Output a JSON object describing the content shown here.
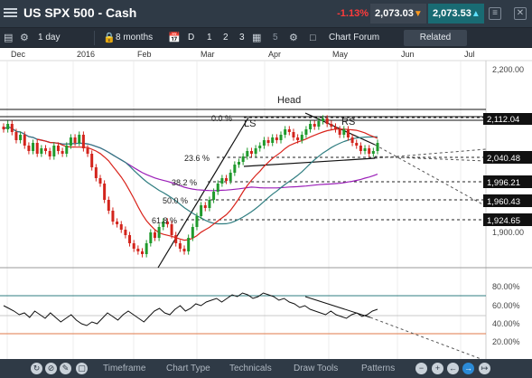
{
  "window": {
    "title": "US SPX 500 - Cash",
    "change": "-1.13%",
    "bid": "2,073.03",
    "ask": "2,073.53",
    "controls": [
      "≡",
      "−",
      "✕"
    ]
  },
  "toolbar": {
    "interval": "1 day",
    "range": "8 months",
    "views": [
      "D",
      "1",
      "2",
      "3"
    ],
    "layout_value": "5",
    "forum": "Chart Forum",
    "related": "Related"
  },
  "bottom": {
    "timeframe": "Timeframe",
    "chart_type": "Chart Type",
    "technicals": "Technicals",
    "draw_tools": "Draw Tools",
    "patterns": "Patterns"
  },
  "chart_data": {
    "type": "line",
    "instrument": "US SPX 500 - Cash",
    "x_labels": [
      "Dec",
      "2016",
      "Feb",
      "Mar",
      "Apr",
      "May",
      "Jun",
      "Jul"
    ],
    "y_ticks": [
      "2,200.00",
      "1,900.00"
    ],
    "price_labels": [
      "2,112.04",
      "2,040.48",
      "1,996.21",
      "1,960.43",
      "1,924.65"
    ],
    "fib_levels": [
      {
        "label": "0.0 %",
        "price": 2112
      },
      {
        "label": "23.6 %",
        "price": 2040
      },
      {
        "label": "38.2 %",
        "price": 1996
      },
      {
        "label": "50.0 %",
        "price": 1960
      },
      {
        "label": "61.8 %",
        "price": 1925
      }
    ],
    "annotations": [
      "Head",
      "LS",
      "RS"
    ],
    "price_series": [
      2090,
      2100,
      2085,
      2070,
      2080,
      2060,
      2050,
      2065,
      2045,
      2055,
      2050,
      2040,
      2060,
      2050,
      2045,
      2060,
      2075,
      2065,
      2080,
      2055,
      2045,
      2020,
      2000,
      1990,
      1960,
      1940,
      1920,
      1915,
      1905,
      1895,
      1880,
      1870,
      1865,
      1860,
      1880,
      1900,
      1890,
      1910,
      1920,
      1915,
      1895,
      1880,
      1870,
      1865,
      1890,
      1910,
      1930,
      1950,
      1945,
      1960,
      1975,
      1990,
      2000,
      1995,
      2010,
      2025,
      2030,
      2040,
      2050,
      2045,
      2055,
      2060,
      2070,
      2065,
      2075,
      2070,
      2080,
      2090,
      2085,
      2075,
      2070,
      2080,
      2090,
      2100,
      2095,
      2105,
      2110,
      2100,
      2095,
      2090,
      2080,
      2090,
      2075,
      2065,
      2060,
      2050,
      2055,
      2045,
      2050,
      2065
    ],
    "rsi_ticks": [
      "80.00%",
      "60.00%",
      "40.00%",
      "20.00%"
    ],
    "rsi_series": [
      58,
      55,
      52,
      48,
      50,
      45,
      52,
      48,
      44,
      50,
      45,
      40,
      44,
      48,
      42,
      38,
      36,
      40,
      38,
      44,
      50,
      46,
      42,
      48,
      52,
      48,
      44,
      40,
      46,
      52,
      55,
      50,
      48,
      54,
      58,
      52,
      55,
      60,
      58,
      62,
      64,
      66,
      62,
      66,
      70,
      68,
      72,
      70,
      66,
      68,
      72,
      70,
      68,
      64,
      66,
      62,
      60,
      56,
      58,
      54,
      52,
      50,
      48,
      52,
      48,
      46,
      44,
      48,
      50,
      46,
      48,
      52,
      54
    ]
  }
}
